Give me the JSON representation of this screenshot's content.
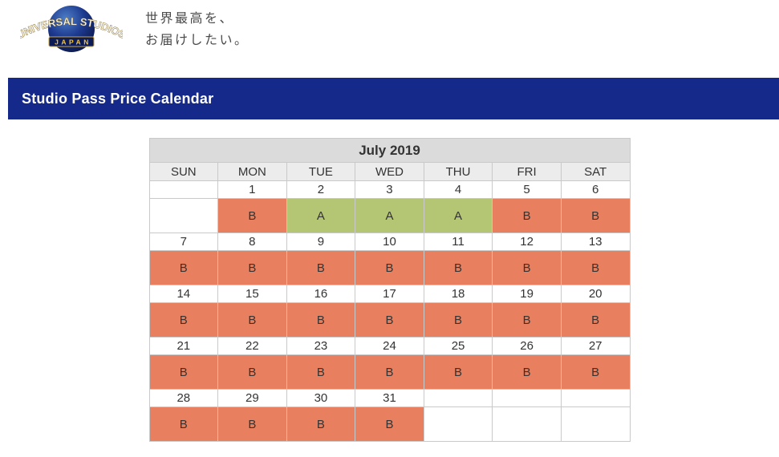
{
  "header": {
    "logo_line1": "UNIVERSAL STUDIOS",
    "logo_line2": "JAPAN",
    "tagline_line1": "世界最高を、",
    "tagline_line2": "お届けしたい。"
  },
  "banner": {
    "title": "Studio Pass Price Calendar"
  },
  "colors": {
    "banner_bg": "#15298A",
    "price_a": "#B4C573",
    "price_b": "#E8805F"
  },
  "calendar": {
    "title": "July 2019",
    "weekdays": [
      "SUN",
      "MON",
      "TUE",
      "WED",
      "THU",
      "FRI",
      "SAT"
    ],
    "weeks": [
      {
        "dates": [
          "",
          "1",
          "2",
          "3",
          "4",
          "5",
          "6"
        ],
        "prices": [
          "",
          "B",
          "A",
          "A",
          "A",
          "B",
          "B"
        ]
      },
      {
        "dates": [
          "7",
          "8",
          "9",
          "10",
          "11",
          "12",
          "13"
        ],
        "prices": [
          "B",
          "B",
          "B",
          "B",
          "B",
          "B",
          "B"
        ]
      },
      {
        "dates": [
          "14",
          "15",
          "16",
          "17",
          "18",
          "19",
          "20"
        ],
        "prices": [
          "B",
          "B",
          "B",
          "B",
          "B",
          "B",
          "B"
        ]
      },
      {
        "dates": [
          "21",
          "22",
          "23",
          "24",
          "25",
          "26",
          "27"
        ],
        "prices": [
          "B",
          "B",
          "B",
          "B",
          "B",
          "B",
          "B"
        ]
      },
      {
        "dates": [
          "28",
          "29",
          "30",
          "31",
          "",
          "",
          ""
        ],
        "prices": [
          "B",
          "B",
          "B",
          "B",
          "",
          "",
          ""
        ]
      }
    ]
  }
}
